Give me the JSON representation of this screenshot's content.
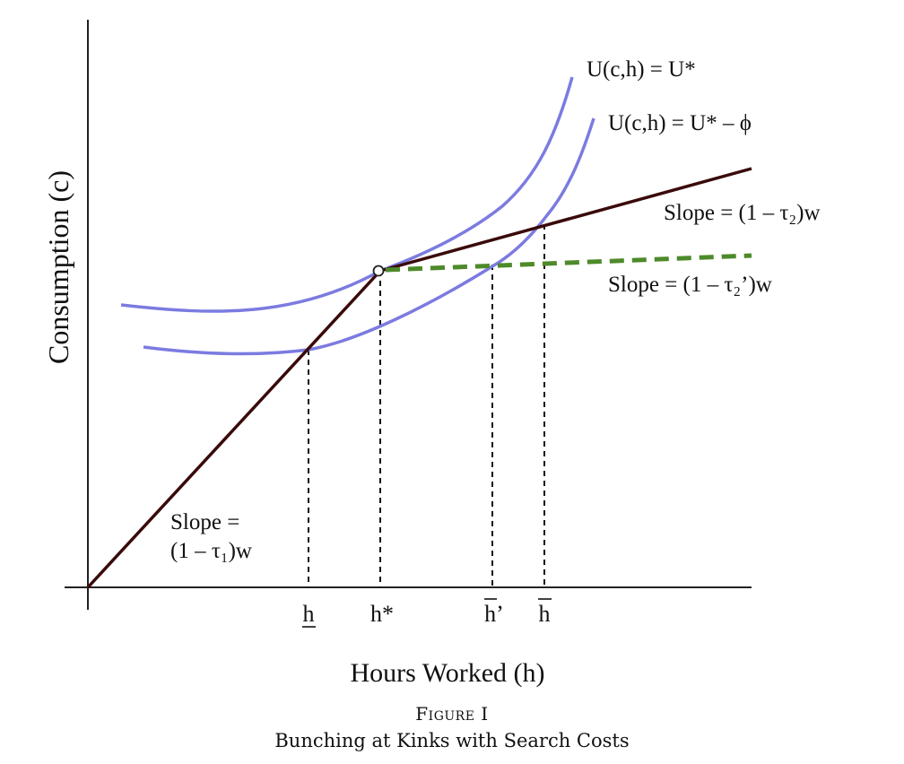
{
  "axes": {
    "y_label": "Consumption (c)",
    "x_label": "Hours Worked (h)"
  },
  "curves": {
    "indifference_high": "U(c,h) = U*",
    "indifference_low": "U(c,h) = U* – ϕ"
  },
  "slopes": {
    "upper": "Slope = (1 – τ₂)w",
    "dashed": "Slope = (1 – τ₂’)w",
    "lower_line1": "Slope =",
    "lower_line2": "(1 – τ₁)w"
  },
  "ticks": {
    "h_low": "h",
    "h_star": "h*",
    "h_bar_prime": "h’",
    "h_bar": "h"
  },
  "caption": {
    "title": "Figure I",
    "subtitle": "Bunching at Kinks with Search Costs"
  },
  "colors": {
    "budget_line": "#3a0a0a",
    "indifference": "#7b7be0",
    "dashed_budget": "#4d8a2a",
    "axis": "#222222"
  }
}
